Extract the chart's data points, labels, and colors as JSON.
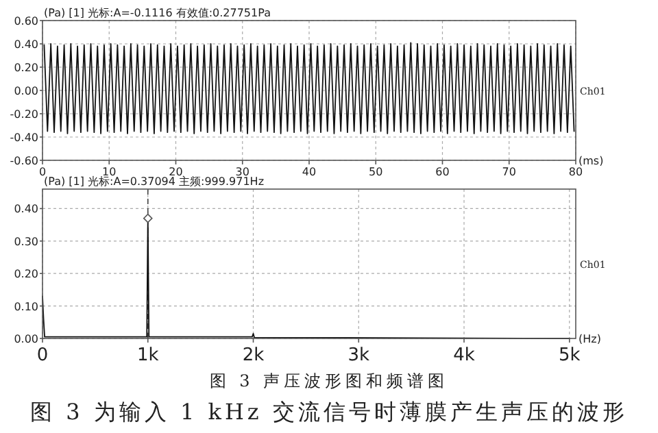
{
  "chart_data": [
    {
      "type": "line",
      "xlabel": "(ms)",
      "xlim": [
        0,
        80
      ],
      "ylim": [
        -0.6,
        0.6
      ],
      "xticks": [
        0,
        10,
        20,
        30,
        40,
        50,
        60,
        70,
        80
      ],
      "yticks": [
        {
          "value": -0.6,
          "label": "-0.60"
        },
        {
          "value": -0.4,
          "label": "-0.40"
        },
        {
          "value": -0.2,
          "label": "-0.20"
        },
        {
          "value": 0,
          "label": "0.00"
        },
        {
          "value": 0.2,
          "label": "0.20"
        },
        {
          "value": 0.4,
          "label": "0.40"
        },
        {
          "value": 0.6,
          "label": "0.60"
        }
      ],
      "grid": true,
      "line_style": "solid",
      "marker": "none",
      "annotations": [
        "(Pa) [1] 光标:A=-0.1116    有效值:0.27751Pa",
        "Ch01"
      ],
      "series": [
        {
          "color": "#111111",
          "x": [
            0.25,
            0.75,
            1.25,
            1.75,
            2.25,
            2.75,
            3.25,
            3.75,
            4.25,
            4.75,
            5.25,
            5.75,
            6.25,
            6.75,
            7.25,
            7.75,
            8.25,
            8.75,
            9.25,
            9.75,
            10.25,
            10.75,
            11.25,
            11.75,
            12.25,
            12.75,
            13.25,
            13.75,
            14.25,
            14.75,
            15.25,
            15.75,
            16.25,
            16.75,
            17.25,
            17.75,
            18.25,
            18.75,
            19.25,
            19.75,
            20.25,
            20.75,
            21.25,
            21.75,
            22.25,
            22.75,
            23.25,
            23.75,
            24.25,
            24.75,
            25.25,
            25.75,
            26.25,
            26.75,
            27.25,
            27.75,
            28.25,
            28.75,
            29.25,
            29.75,
            30.25,
            30.75,
            31.25,
            31.75,
            32.25,
            32.75,
            33.25,
            33.75,
            34.25,
            34.75,
            35.25,
            35.75,
            36.25,
            36.75,
            37.25,
            37.75,
            38.25,
            38.75,
            39.25,
            39.75,
            40.25,
            40.75,
            41.25,
            41.75,
            42.25,
            42.75,
            43.25,
            43.75,
            44.25,
            44.75,
            45.25,
            45.75,
            46.25,
            46.75,
            47.25,
            47.75,
            48.25,
            48.75,
            49.25,
            49.75,
            50.25,
            50.75,
            51.25,
            51.75,
            52.25,
            52.75,
            53.25,
            53.75,
            54.25,
            54.75,
            55.25,
            55.75,
            56.25,
            56.75,
            57.25,
            57.75,
            58.25,
            58.75,
            59.25,
            59.75,
            60.25,
            60.75,
            61.25,
            61.75,
            62.25,
            62.75,
            63.25,
            63.75,
            64.25,
            64.75,
            65.25,
            65.75,
            66.25,
            66.75,
            67.25,
            67.75,
            68.25,
            68.75,
            69.25,
            69.75,
            70.25,
            70.75,
            71.25,
            71.75,
            72.25,
            72.75,
            73.25,
            73.75,
            74.25,
            74.75,
            75.25,
            75.75,
            76.25,
            76.75,
            77.25,
            77.75,
            78.25,
            78.75,
            79.25,
            79.75
          ],
          "values": [
            0.39,
            -0.35,
            0.4,
            -0.36,
            0.38,
            -0.35,
            0.39,
            -0.37,
            0.4,
            -0.35,
            0.38,
            -0.36,
            0.39,
            -0.35,
            0.4,
            -0.36,
            0.38,
            -0.37,
            0.39,
            -0.35,
            0.4,
            -0.36,
            0.39,
            -0.35,
            0.38,
            -0.37,
            0.4,
            -0.35,
            0.39,
            -0.36,
            0.38,
            -0.35,
            0.4,
            -0.37,
            0.39,
            -0.35,
            0.38,
            -0.36,
            0.4,
            -0.35,
            0.38,
            -0.36,
            0.39,
            -0.35,
            0.4,
            -0.37,
            0.38,
            -0.35,
            0.39,
            -0.36,
            0.4,
            -0.35,
            0.38,
            -0.37,
            0.39,
            -0.35,
            0.4,
            -0.36,
            0.38,
            -0.35,
            0.39,
            -0.37,
            0.4,
            -0.35,
            0.38,
            -0.36,
            0.39,
            -0.35,
            0.4,
            -0.36,
            0.38,
            -0.37,
            0.39,
            -0.35,
            0.4,
            -0.36,
            0.38,
            -0.35,
            0.39,
            -0.37,
            0.4,
            -0.35,
            0.38,
            -0.36,
            0.39,
            -0.35,
            0.4,
            -0.37,
            0.38,
            -0.35,
            0.39,
            -0.36,
            0.4,
            -0.35,
            0.38,
            -0.37,
            0.39,
            -0.35,
            0.4,
            -0.36,
            0.38,
            -0.35,
            0.39,
            -0.37,
            0.4,
            -0.35,
            0.38,
            -0.36,
            0.39,
            -0.35,
            0.41,
            -0.36,
            0.4,
            -0.37,
            0.39,
            -0.35,
            0.38,
            -0.36,
            0.4,
            -0.35,
            0.39,
            -0.37,
            0.38,
            -0.35,
            0.4,
            -0.36,
            0.39,
            -0.35,
            0.38,
            -0.37,
            0.4,
            -0.35,
            0.39,
            -0.36,
            0.38,
            -0.35,
            0.4,
            -0.37,
            0.39,
            -0.35,
            0.38,
            -0.36,
            0.4,
            -0.35,
            0.39,
            -0.37,
            0.38,
            -0.35,
            0.4,
            -0.36,
            0.39,
            -0.35,
            0.38,
            -0.37,
            0.4,
            -0.35,
            0.39,
            -0.36,
            0.38,
            -0.35
          ]
        }
      ]
    },
    {
      "type": "line",
      "xlabel": "(Hz)",
      "xlim": [
        0,
        5060
      ],
      "ylim": [
        0,
        0.46
      ],
      "xticks": [
        {
          "value": 0,
          "label": "0"
        },
        {
          "value": 1000,
          "label": "1k"
        },
        {
          "value": 2000,
          "label": "2k"
        },
        {
          "value": 3000,
          "label": "3k"
        },
        {
          "value": 4000,
          "label": "4k"
        },
        {
          "value": 5000,
          "label": "5k"
        }
      ],
      "yticks": [
        {
          "value": 0,
          "label": "0.00"
        },
        {
          "value": 0.1,
          "label": "0.10"
        },
        {
          "value": 0.2,
          "label": "0.20"
        },
        {
          "value": 0.3,
          "label": "0.30"
        },
        {
          "value": 0.4,
          "label": "0.40"
        }
      ],
      "grid": true,
      "line_style": "solid",
      "ref_lines": [
        {
          "axis": "x",
          "value": 1000,
          "line_style": "dashed",
          "color": "#444444"
        }
      ],
      "annotations": [
        "(Pa) [1] 光标:A=0.37094      主频:999.971Hz",
        "Ch01",
        "图 3   声压波形图和频谱图",
        "图 3 为输入 1 kHz 交流信号时薄膜产生声压的波形"
      ],
      "series": [
        {
          "color": "#111111",
          "marker": "none",
          "x": [
            0,
            10,
            20,
            990,
            1000,
            1010,
            1990,
            2000,
            2010,
            5000
          ],
          "values": [
            0.13,
            0.06,
            0.005,
            0.005,
            0.37,
            0.005,
            0.005,
            0.015,
            0.003,
            0
          ]
        },
        {
          "type": "scatter",
          "color": "#555555",
          "marker": "diamond",
          "x": [
            1000
          ],
          "values": [
            0.37
          ]
        }
      ]
    }
  ]
}
